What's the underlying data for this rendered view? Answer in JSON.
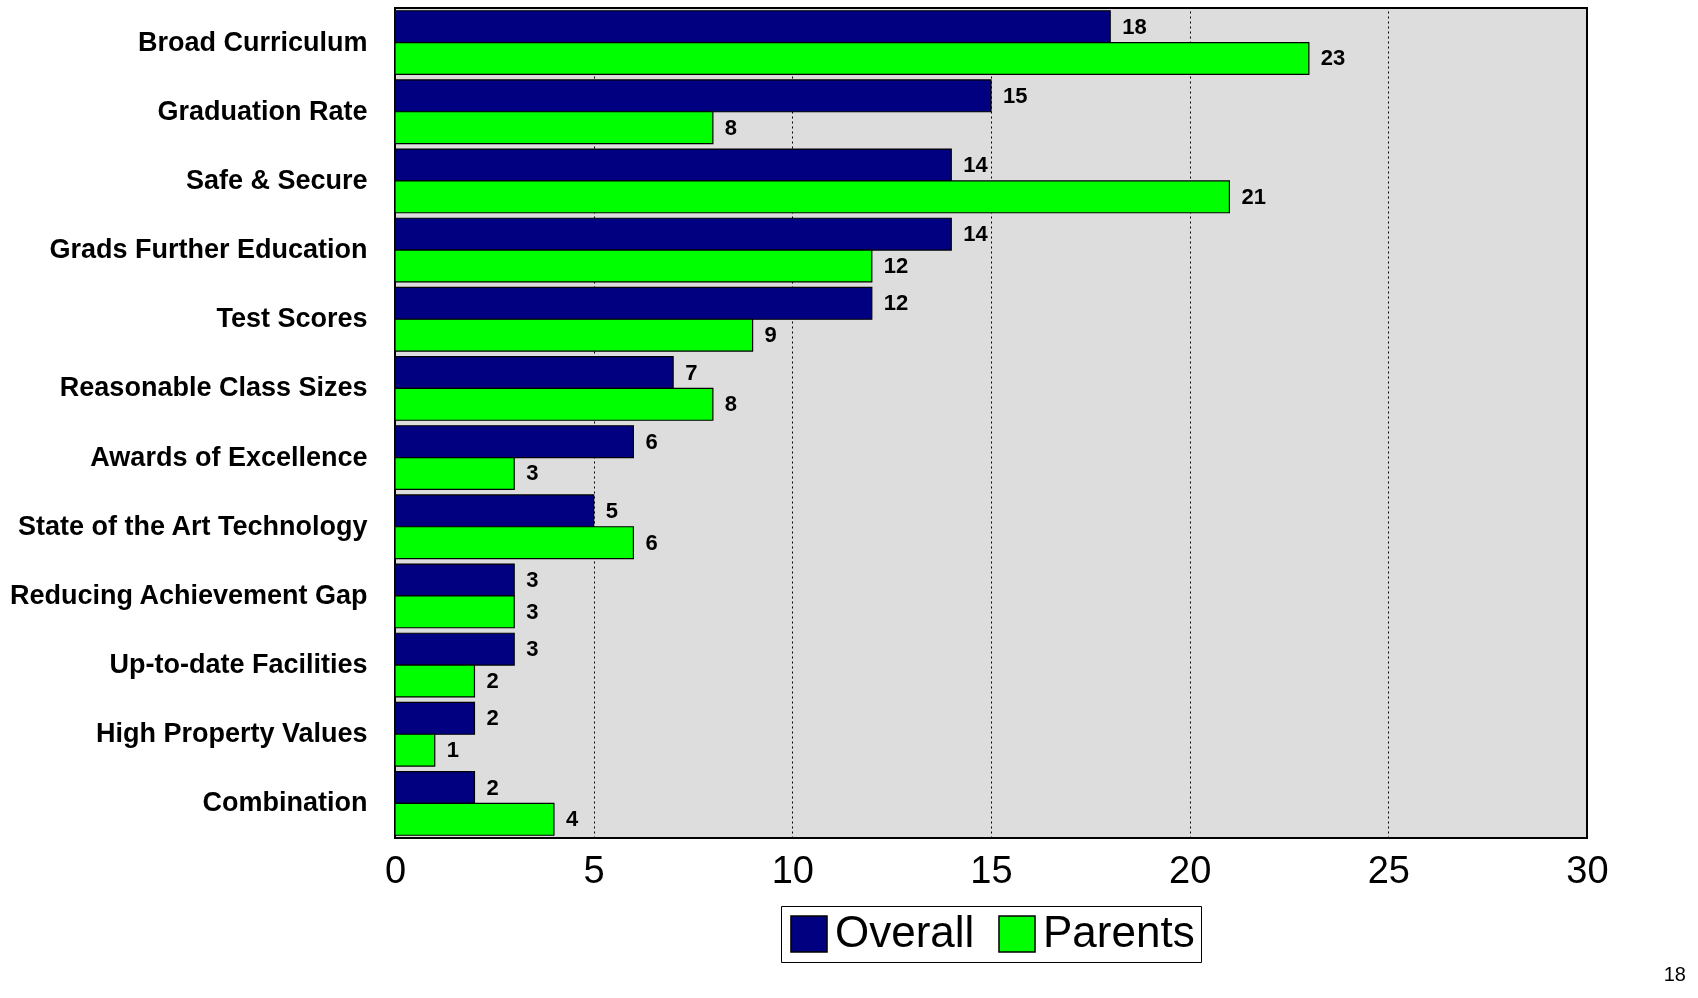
{
  "chart_data": {
    "type": "bar",
    "orientation": "horizontal",
    "categories": [
      "Broad Curriculum",
      "Graduation Rate",
      "Safe & Secure",
      "Grads Further Education",
      "Test Scores",
      "Reasonable Class Sizes",
      "Awards of Excellence",
      "State of the Art Technology",
      "Reducing Achievement Gap",
      "Up-to-date Facilities",
      "High Property Values",
      "Combination"
    ],
    "series": [
      {
        "name": "Overall",
        "color": "#000080",
        "values": [
          18,
          15,
          14,
          14,
          12,
          7,
          6,
          5,
          3,
          3,
          2,
          2
        ]
      },
      {
        "name": "Parents",
        "color": "#00ff00",
        "values": [
          23,
          8,
          21,
          12,
          9,
          8,
          3,
          6,
          3,
          2,
          1,
          4
        ]
      }
    ],
    "xlim": [
      0,
      30
    ],
    "xticks": [
      0,
      5,
      10,
      15,
      20,
      25,
      30
    ],
    "grid": "x",
    "legend": "bottom",
    "data_labels": true,
    "annotations": [
      "18"
    ]
  }
}
